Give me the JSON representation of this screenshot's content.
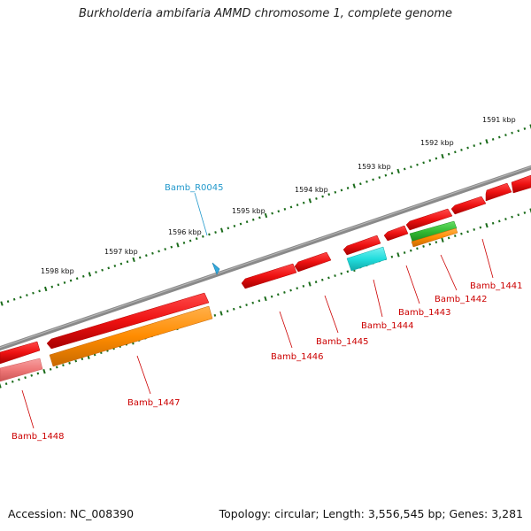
{
  "title": "Burkholderia ambifaria AMMD chromosome 1, complete genome",
  "footer": {
    "accession": "Accession: NC_008390",
    "genome_info": "Topology: circular; Length: 3,556,545 bp; Genes: 3,281"
  },
  "ruler_labels": [
    "1591 kbp",
    "1592 kbp",
    "1593 kbp",
    "1594 kbp",
    "1595 kbp",
    "1596 kbp",
    "1597 kbp",
    "1598 kbp"
  ],
  "features": [
    {
      "label": "Bamb_1441",
      "strand": "reverse",
      "track": "gene",
      "color": "#ee1111"
    },
    {
      "label": "Bamb_1442",
      "strand": "reverse",
      "track": "CDS",
      "color": "#33bb33"
    },
    {
      "label": "Bamb_1443",
      "strand": "reverse",
      "track": "gene",
      "color": "#ee1111"
    },
    {
      "label": "Bamb_1444",
      "strand": "reverse",
      "track": "rRNA",
      "color": "#22dddd"
    },
    {
      "label": "Bamb_1445",
      "strand": "reverse",
      "track": "gene",
      "color": "#ee1111"
    },
    {
      "label": "Bamb_1446",
      "strand": "reverse",
      "track": "gene",
      "color": "#ee1111"
    },
    {
      "label": "Bamb_1447",
      "strand": "reverse",
      "track": "gene",
      "color": "#ee1111"
    },
    {
      "label": "Bamb_1448",
      "strand": "reverse",
      "track": "gene",
      "color": "#ee1111"
    },
    {
      "label": "Bamb_R0045",
      "strand": "forward",
      "track": "tRNA",
      "color": "#33aadd"
    }
  ],
  "colors": {
    "backbone": "#777777",
    "ruler_tick": "#1a6b1a",
    "gene_red": "#ee1111",
    "cds_orange": "#ff8c00",
    "cds_green": "#33bb33",
    "rna_cyan": "#22dddd",
    "label_red": "#cc0000",
    "label_cyan": "#2299cc"
  }
}
